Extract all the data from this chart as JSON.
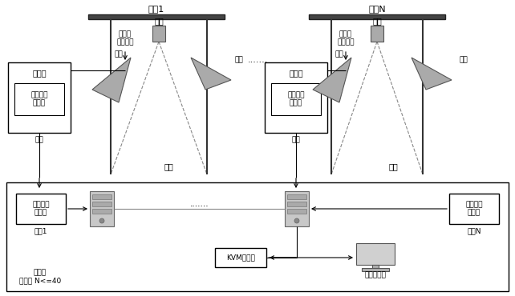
{
  "bg_color": "#ffffff",
  "left_belt_label": "皮带1",
  "right_belt_label": "皮带N",
  "net_label": "网线和\n电源线等",
  "camera_label": "相机",
  "light_label": "光源",
  "field_box_label": "现场箱",
  "fiber1_label": "第一光纤\n收发器",
  "fiber_label": "光纤",
  "belt_label": "皮带",
  "fiber2_label1": "第二光纤\n收发器",
  "belt1_label": "皮带1",
  "fiber2_label2": "第二光纤\n收发器",
  "beltN_label": "皮带N",
  "kvm_label": "KVM切换器",
  "monitor_label": "第一显示器",
  "master_label": "主控室\n皮带数 N<=40",
  "ellipsis": "......."
}
